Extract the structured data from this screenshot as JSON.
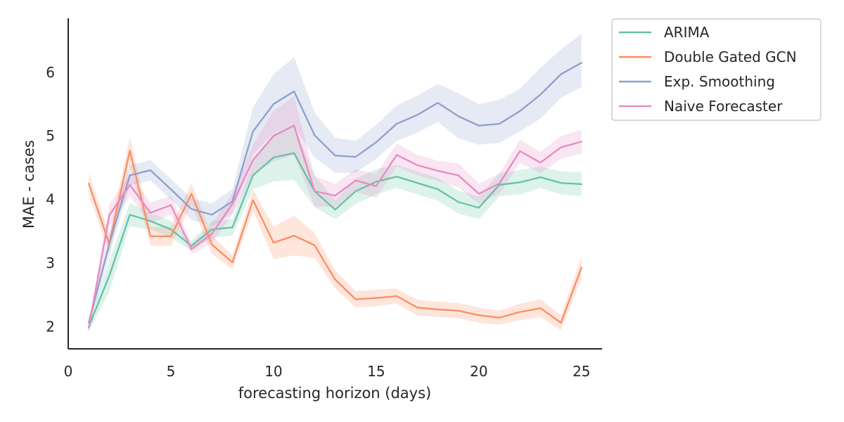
{
  "chart_data": {
    "type": "line",
    "title": "",
    "xlabel": "forecasting horizon (days)",
    "ylabel": "MAE - cases",
    "xlim": [
      0,
      26
    ],
    "ylim": [
      1.65,
      6.85
    ],
    "x_ticks": [
      0,
      5,
      10,
      15,
      20,
      25
    ],
    "y_ticks": [
      2,
      3,
      4,
      5,
      6
    ],
    "grid": false,
    "legend_position": "outside-top-right",
    "x": [
      1,
      2,
      3,
      4,
      5,
      6,
      7,
      8,
      9,
      10,
      11,
      12,
      13,
      14,
      15,
      16,
      17,
      18,
      19,
      20,
      21,
      22,
      23,
      24,
      25
    ],
    "series": [
      {
        "name": "ARIMA",
        "color": "#66c2a5",
        "values": [
          2.0,
          2.8,
          3.76,
          3.66,
          3.53,
          3.27,
          3.53,
          3.56,
          4.38,
          4.66,
          4.73,
          4.13,
          3.84,
          4.13,
          4.28,
          4.36,
          4.26,
          4.16,
          3.96,
          3.87,
          4.23,
          4.27,
          4.35,
          4.26,
          4.24
        ],
        "lower": [
          1.92,
          2.55,
          3.58,
          3.53,
          3.4,
          3.19,
          3.4,
          3.43,
          4.16,
          4.28,
          4.31,
          3.88,
          3.69,
          3.93,
          4.08,
          4.18,
          4.08,
          3.98,
          3.78,
          3.69,
          4.05,
          4.08,
          4.18,
          4.08,
          4.05
        ],
        "upper": [
          2.08,
          3.05,
          3.94,
          3.79,
          3.66,
          3.35,
          3.66,
          3.69,
          4.6,
          5.04,
          5.15,
          4.38,
          3.99,
          4.33,
          4.48,
          4.54,
          4.44,
          4.34,
          4.14,
          4.05,
          4.41,
          4.46,
          4.52,
          4.44,
          4.43
        ]
      },
      {
        "name": "Double Gated GCN",
        "color": "#fc8d62",
        "values": [
          4.25,
          3.3,
          4.77,
          3.42,
          3.42,
          4.09,
          3.29,
          3.01,
          3.99,
          3.32,
          3.43,
          3.28,
          2.74,
          2.43,
          2.45,
          2.48,
          2.3,
          2.27,
          2.25,
          2.18,
          2.14,
          2.23,
          2.29,
          2.06,
          2.93
        ],
        "lower": [
          4.08,
          3.15,
          4.55,
          3.27,
          3.27,
          3.92,
          3.14,
          2.9,
          3.82,
          3.06,
          3.12,
          3.08,
          2.6,
          2.3,
          2.32,
          2.36,
          2.18,
          2.15,
          2.13,
          2.06,
          2.03,
          2.1,
          2.15,
          1.94,
          2.76
        ],
        "upper": [
          4.42,
          3.45,
          4.99,
          3.57,
          3.57,
          4.26,
          3.44,
          3.12,
          4.16,
          3.58,
          3.74,
          3.48,
          2.88,
          2.56,
          2.58,
          2.6,
          2.42,
          2.39,
          2.37,
          2.3,
          2.25,
          2.36,
          2.43,
          2.18,
          3.1
        ]
      },
      {
        "name": "Exp. Smoothing",
        "color": "#8da0cb",
        "values": [
          2.06,
          3.3,
          4.38,
          4.46,
          4.16,
          3.85,
          3.76,
          3.97,
          5.07,
          5.5,
          5.7,
          5.01,
          4.69,
          4.67,
          4.9,
          5.19,
          5.33,
          5.52,
          5.31,
          5.16,
          5.19,
          5.39,
          5.65,
          5.97,
          6.15
        ],
        "lower": [
          1.98,
          3.12,
          4.22,
          4.3,
          4.0,
          3.68,
          3.58,
          3.78,
          4.7,
          5.05,
          5.15,
          4.66,
          4.42,
          4.42,
          4.64,
          4.92,
          5.05,
          5.22,
          4.96,
          4.86,
          4.89,
          5.07,
          5.27,
          5.6,
          5.77
        ],
        "upper": [
          2.14,
          3.48,
          4.54,
          4.62,
          4.32,
          4.02,
          3.94,
          4.16,
          5.45,
          5.97,
          6.24,
          5.37,
          4.97,
          4.92,
          5.17,
          5.48,
          5.63,
          5.82,
          5.67,
          5.5,
          5.57,
          5.74,
          6.07,
          6.36,
          6.61
        ]
      },
      {
        "name": "Naive Forecaster",
        "color": "#e78ac3",
        "values": [
          1.98,
          3.75,
          4.23,
          3.79,
          3.91,
          3.22,
          3.46,
          3.93,
          4.62,
          5.0,
          5.16,
          4.13,
          4.06,
          4.3,
          4.21,
          4.7,
          4.54,
          4.45,
          4.38,
          4.09,
          4.25,
          4.76,
          4.58,
          4.82,
          4.91
        ],
        "lower": [
          1.9,
          3.58,
          4.05,
          3.63,
          3.76,
          3.14,
          3.31,
          3.76,
          4.38,
          4.6,
          4.7,
          3.89,
          3.88,
          4.12,
          4.02,
          4.52,
          4.38,
          4.29,
          4.19,
          3.93,
          4.09,
          4.58,
          4.41,
          4.64,
          4.72
        ],
        "upper": [
          2.06,
          3.92,
          4.41,
          3.95,
          4.06,
          3.3,
          3.61,
          4.1,
          4.86,
          5.4,
          5.62,
          4.37,
          4.24,
          4.48,
          4.4,
          4.88,
          4.7,
          4.61,
          4.57,
          4.25,
          4.41,
          4.94,
          4.75,
          5.0,
          5.1
        ]
      }
    ]
  }
}
